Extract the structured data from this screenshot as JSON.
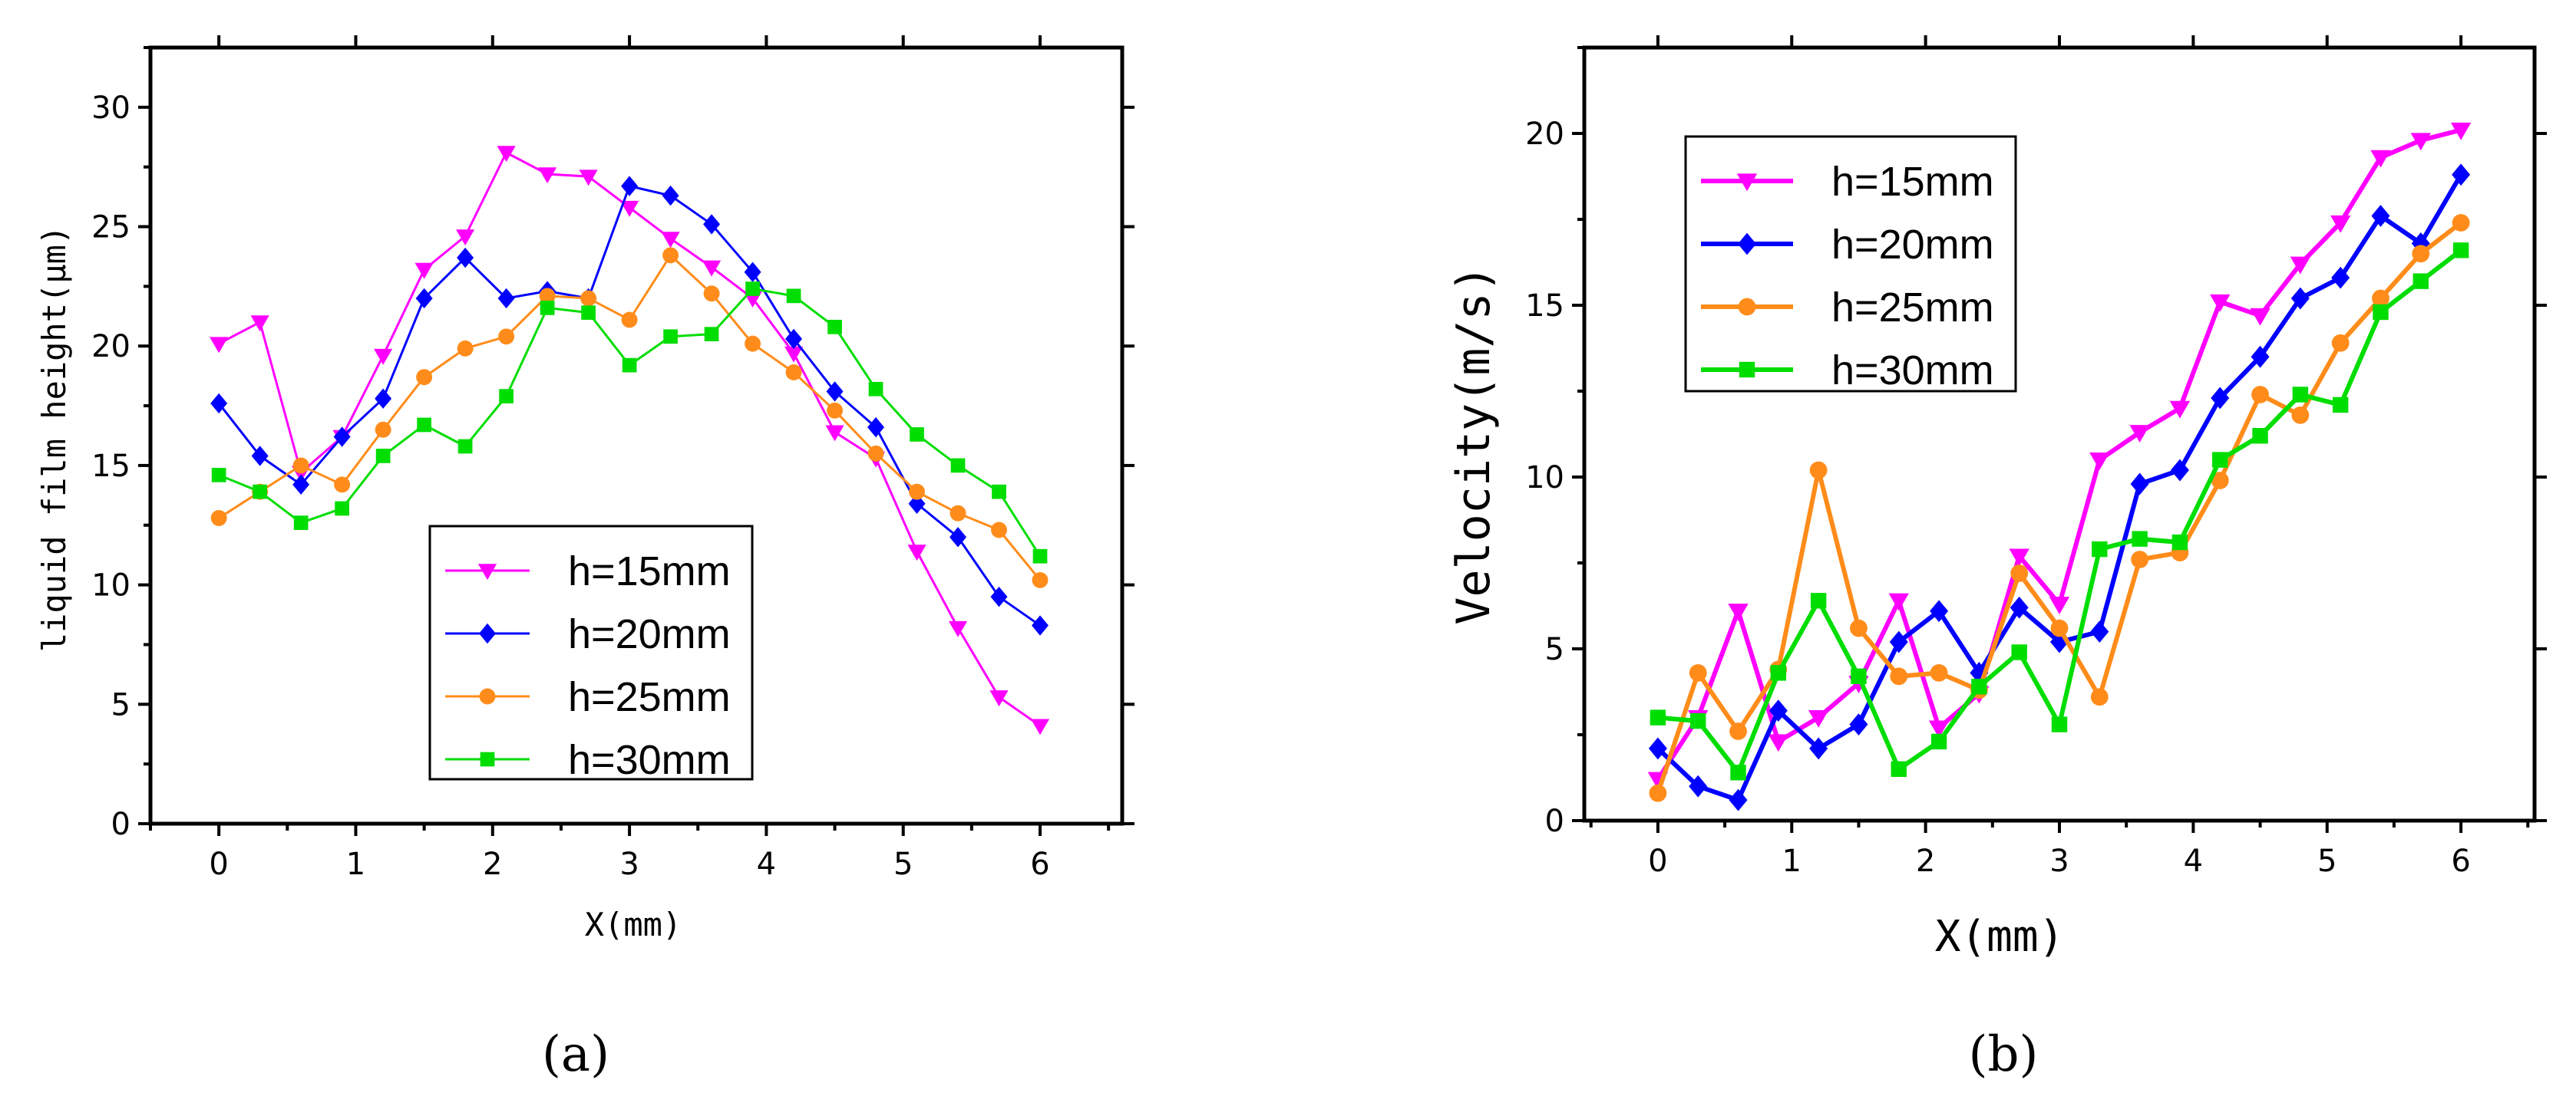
{
  "chart_data": [
    {
      "type": "line",
      "panel_label": "(a)",
      "xlabel": "X(mm)",
      "ylabel": "liquid film height(μm)",
      "xlim": [
        -0.5,
        6.6
      ],
      "ylim": [
        0,
        32.5
      ],
      "xticks": [
        0,
        1,
        2,
        3,
        4,
        5,
        6
      ],
      "yticks": [
        0,
        5,
        10,
        15,
        20,
        25,
        30
      ],
      "legend_position": "lower-center",
      "x": [
        0,
        0.3,
        0.6,
        0.9,
        1.2,
        1.5,
        1.8,
        2.1,
        2.4,
        2.7,
        3.0,
        3.3,
        3.6,
        3.9,
        4.2,
        4.5,
        4.8,
        5.1,
        5.4,
        5.7,
        6.0
      ],
      "series": [
        {
          "name": "h=15mm",
          "color": "#ff00ff",
          "marker": "triangle-down",
          "values": [
            20.1,
            21.0,
            14.7,
            16.2,
            19.6,
            23.2,
            24.6,
            28.1,
            27.2,
            27.1,
            25.8,
            24.5,
            23.3,
            22.0,
            19.7,
            16.4,
            15.3,
            11.4,
            8.2,
            5.3,
            4.1
          ]
        },
        {
          "name": "h=20mm",
          "color": "#0000ff",
          "marker": "diamond",
          "values": [
            17.6,
            15.4,
            14.2,
            16.2,
            17.8,
            22.0,
            23.7,
            22.0,
            22.3,
            22.0,
            26.7,
            26.3,
            25.1,
            23.1,
            20.3,
            18.1,
            16.6,
            13.4,
            12.0,
            9.5,
            8.3
          ]
        },
        {
          "name": "h=25mm",
          "color": "#ff8c1a",
          "marker": "circle",
          "values": [
            12.8,
            13.9,
            15.0,
            14.2,
            16.5,
            18.7,
            19.9,
            20.4,
            22.1,
            22.0,
            21.1,
            23.8,
            22.2,
            20.1,
            18.9,
            17.3,
            15.5,
            13.9,
            13.0,
            12.3,
            10.2
          ]
        },
        {
          "name": "h=30mm",
          "color": "#00dd00",
          "marker": "square",
          "values": [
            14.6,
            13.9,
            12.6,
            13.2,
            15.4,
            16.7,
            15.8,
            17.9,
            21.6,
            21.4,
            19.2,
            20.4,
            20.5,
            22.4,
            22.1,
            20.8,
            18.2,
            16.3,
            15.0,
            13.9,
            11.2
          ]
        }
      ]
    },
    {
      "type": "line",
      "panel_label": "(b)",
      "xlabel": "X(mm)",
      "ylabel": "Velocity(m/s)",
      "xlim": [
        -0.55,
        6.55
      ],
      "ylim": [
        0,
        22.5
      ],
      "xticks": [
        0,
        1,
        2,
        3,
        4,
        5,
        6
      ],
      "yticks": [
        0,
        5,
        10,
        15,
        20
      ],
      "legend_position": "top-left",
      "x": [
        0,
        0.3,
        0.6,
        0.9,
        1.2,
        1.5,
        1.8,
        2.1,
        2.4,
        2.7,
        3.0,
        3.3,
        3.6,
        3.9,
        4.2,
        4.5,
        4.8,
        5.1,
        5.4,
        5.7,
        6.0
      ],
      "series": [
        {
          "name": "h=15mm",
          "color": "#ff00ff",
          "marker": "triangle-down",
          "values": [
            1.2,
            3.0,
            6.1,
            2.3,
            3.0,
            4.0,
            6.4,
            2.7,
            3.7,
            7.7,
            6.3,
            10.5,
            11.3,
            12.0,
            15.1,
            14.7,
            16.2,
            17.4,
            19.3,
            19.8,
            20.1
          ]
        },
        {
          "name": "h=20mm",
          "color": "#0000ff",
          "marker": "diamond",
          "values": [
            2.1,
            1.0,
            0.6,
            3.2,
            2.1,
            2.8,
            5.2,
            6.1,
            4.3,
            6.2,
            5.2,
            5.5,
            9.8,
            10.2,
            12.3,
            13.5,
            15.2,
            15.8,
            17.6,
            16.8,
            18.8
          ]
        },
        {
          "name": "h=25mm",
          "color": "#ff8c1a",
          "marker": "circle",
          "values": [
            0.8,
            4.3,
            2.6,
            4.4,
            10.2,
            5.6,
            4.2,
            4.3,
            3.8,
            7.2,
            5.6,
            3.6,
            7.6,
            7.8,
            9.9,
            12.4,
            11.8,
            13.9,
            15.2,
            16.5,
            17.4
          ]
        },
        {
          "name": "h=30mm",
          "color": "#00dd00",
          "marker": "square",
          "values": [
            3.0,
            2.9,
            1.4,
            4.3,
            6.4,
            4.2,
            1.5,
            2.3,
            3.9,
            4.9,
            2.8,
            7.9,
            8.2,
            8.1,
            10.5,
            11.2,
            12.4,
            12.1,
            14.8,
            15.7,
            16.6
          ]
        }
      ]
    }
  ]
}
